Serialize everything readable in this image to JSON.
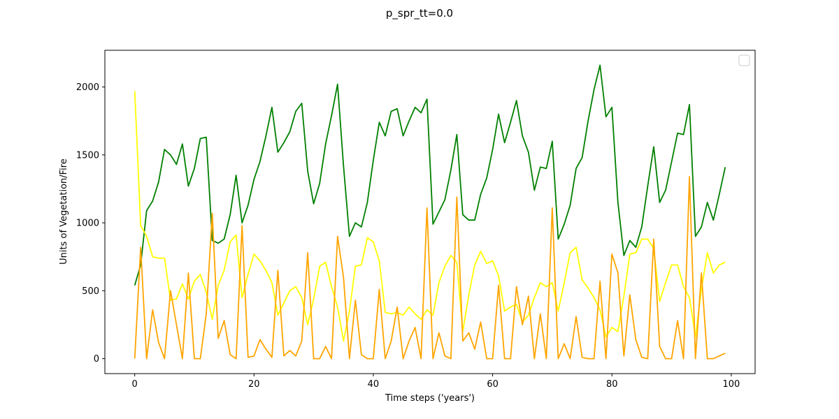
{
  "chart_data": {
    "type": "line",
    "title": "p_spr_tt=0.0",
    "xlabel": "Time steps ('years')",
    "ylabel": "Units of Vegetation/Fire",
    "xlim": [
      -5,
      104
    ],
    "ylim": [
      -110,
      2270
    ],
    "xticks": [
      0,
      20,
      40,
      60,
      80,
      100
    ],
    "yticks": [
      0,
      500,
      1000,
      1500,
      2000
    ],
    "grid": false,
    "legend": "top-right (empty)",
    "x": [
      0,
      1,
      2,
      3,
      4,
      5,
      6,
      7,
      8,
      9,
      10,
      11,
      12,
      13,
      14,
      15,
      16,
      17,
      18,
      19,
      20,
      21,
      22,
      23,
      24,
      25,
      26,
      27,
      28,
      29,
      30,
      31,
      32,
      33,
      34,
      35,
      36,
      37,
      38,
      39,
      40,
      41,
      42,
      43,
      44,
      45,
      46,
      47,
      48,
      49,
      50,
      51,
      52,
      53,
      54,
      55,
      56,
      57,
      58,
      59,
      60,
      61,
      62,
      63,
      64,
      65,
      66,
      67,
      68,
      69,
      70,
      71,
      72,
      73,
      74,
      75,
      76,
      77,
      78,
      79,
      80,
      81,
      82,
      83,
      84,
      85,
      86,
      87,
      88,
      89,
      90,
      91,
      92,
      93,
      94,
      95,
      96,
      97,
      98,
      99
    ],
    "series": [
      {
        "color": "#008000",
        "values": [
          540,
          690,
          1090,
          1160,
          1300,
          1540,
          1500,
          1430,
          1580,
          1270,
          1400,
          1620,
          1630,
          870,
          850,
          880,
          1060,
          1350,
          1000,
          1130,
          1320,
          1450,
          1640,
          1850,
          1520,
          1590,
          1670,
          1820,
          1880,
          1380,
          1140,
          1290,
          1580,
          1790,
          2020,
          1420,
          900,
          1000,
          970,
          1150,
          1460,
          1740,
          1640,
          1820,
          1840,
          1640,
          1750,
          1850,
          1810,
          1910,
          990,
          1080,
          1170,
          1390,
          1650,
          1060,
          1020,
          1020,
          1210,
          1330,
          1540,
          1800,
          1590,
          1740,
          1900,
          1640,
          1520,
          1240,
          1410,
          1400,
          1600,
          880,
          990,
          1130,
          1400,
          1480,
          1750,
          1980,
          2160,
          1780,
          1850,
          1150,
          760,
          870,
          820,
          970,
          1270,
          1560,
          1150,
          1240,
          1450,
          1660,
          1650,
          1870,
          900,
          970,
          1150,
          1020,
          1210,
          1410
        ]
      },
      {
        "color": "#ffff00",
        "values": [
          1970,
          980,
          900,
          750,
          740,
          740,
          430,
          440,
          550,
          440,
          570,
          620,
          490,
          290,
          540,
          650,
          860,
          910,
          450,
          620,
          770,
          720,
          650,
          560,
          320,
          410,
          500,
          530,
          450,
          250,
          440,
          680,
          710,
          530,
          380,
          130,
          350,
          680,
          690,
          890,
          860,
          720,
          340,
          330,
          340,
          320,
          380,
          330,
          290,
          360,
          320,
          560,
          680,
          760,
          710,
          200,
          470,
          690,
          790,
          700,
          720,
          610,
          350,
          380,
          400,
          270,
          320,
          450,
          560,
          530,
          560,
          350,
          560,
          780,
          820,
          580,
          520,
          450,
          360,
          160,
          230,
          200,
          460,
          770,
          780,
          880,
          880,
          810,
          420,
          560,
          690,
          690,
          530,
          450,
          160,
          510,
          780,
          630,
          690,
          710
        ]
      },
      {
        "color": "#ffa500",
        "values": [
          0,
          820,
          0,
          360,
          120,
          0,
          500,
          250,
          0,
          630,
          0,
          0,
          330,
          1070,
          150,
          280,
          30,
          0,
          980,
          10,
          20,
          140,
          70,
          10,
          650,
          20,
          60,
          20,
          130,
          780,
          0,
          0,
          90,
          0,
          900,
          600,
          0,
          430,
          30,
          0,
          0,
          510,
          0,
          130,
          380,
          0,
          130,
          230,
          0,
          1110,
          0,
          190,
          20,
          0,
          1190,
          130,
          190,
          70,
          270,
          0,
          0,
          540,
          0,
          0,
          530,
          250,
          460,
          0,
          330,
          0,
          1110,
          0,
          110,
          0,
          310,
          10,
          0,
          0,
          570,
          0,
          770,
          630,
          20,
          470,
          140,
          10,
          0,
          880,
          90,
          0,
          0,
          280,
          0,
          1340,
          0,
          630,
          0,
          0,
          20,
          40
        ]
      }
    ]
  }
}
